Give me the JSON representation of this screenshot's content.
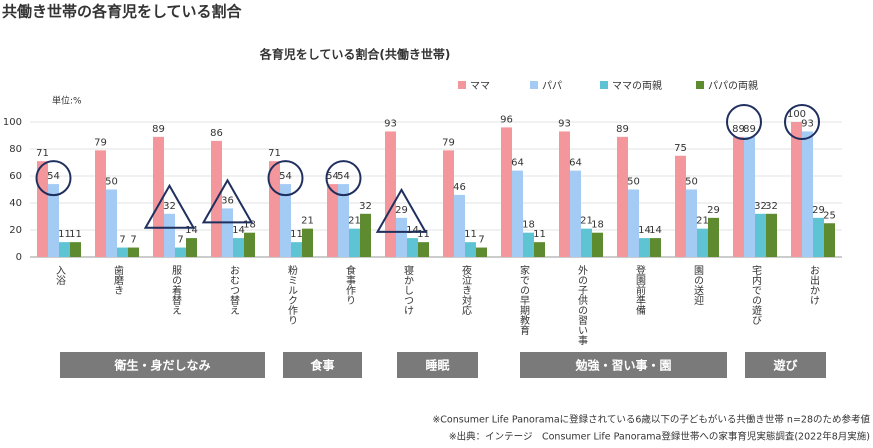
{
  "chart_data": {
    "type": "bar",
    "title": "共働き世帯の各育児をしている割合",
    "subtitle": "各育児をしている割合(共働き世帯)",
    "y_unit": "単位:%",
    "categories": [
      "入浴",
      "歯磨き",
      "服の着替え",
      "おむつ替え",
      "粉ミルク作り",
      "食事作り",
      "寝かしつけ",
      "夜泣き対応",
      "家での早期教育",
      "外の子供の習い事",
      "登園前準備",
      "園の送迎",
      "宅内での遊び",
      "お出かけ"
    ],
    "series": [
      {
        "name": "ママ",
        "color": "#f4979c",
        "values": [
          71,
          79,
          89,
          86,
          71,
          54,
          93,
          79,
          96,
          93,
          89,
          75,
          89,
          100
        ]
      },
      {
        "name": "パパ",
        "color": "#a3cbf4",
        "values": [
          54,
          50,
          32,
          36,
          54,
          54,
          29,
          46,
          64,
          64,
          50,
          50,
          89,
          93
        ]
      },
      {
        "name": "ママの両親",
        "color": "#5ec4d4",
        "values": [
          11,
          7,
          7,
          14,
          11,
          21,
          14,
          11,
          18,
          21,
          14,
          21,
          32,
          29
        ]
      },
      {
        "name": "パパの両親",
        "color": "#5e8a30",
        "values": [
          11,
          7,
          14,
          18,
          21,
          32,
          11,
          7,
          11,
          18,
          14,
          29,
          32,
          25
        ]
      }
    ],
    "ylim": [
      0,
      100
    ],
    "yticks": [
      0,
      20,
      40,
      60,
      80,
      100
    ],
    "grid": true,
    "groups": [
      "衛生・身だしなみ",
      "食事",
      "睡眠",
      "勉強・習い事・園",
      "遊び"
    ],
    "notes": [
      "※Consumer Life Panoramaに登録されている6歳以下の子どもがいる共働き世帯 n=28のため参考値",
      "※出典：インテージ　Consumer Life Panorama登録世帯への家事育児実態調査(2022年8月実施)"
    ]
  }
}
